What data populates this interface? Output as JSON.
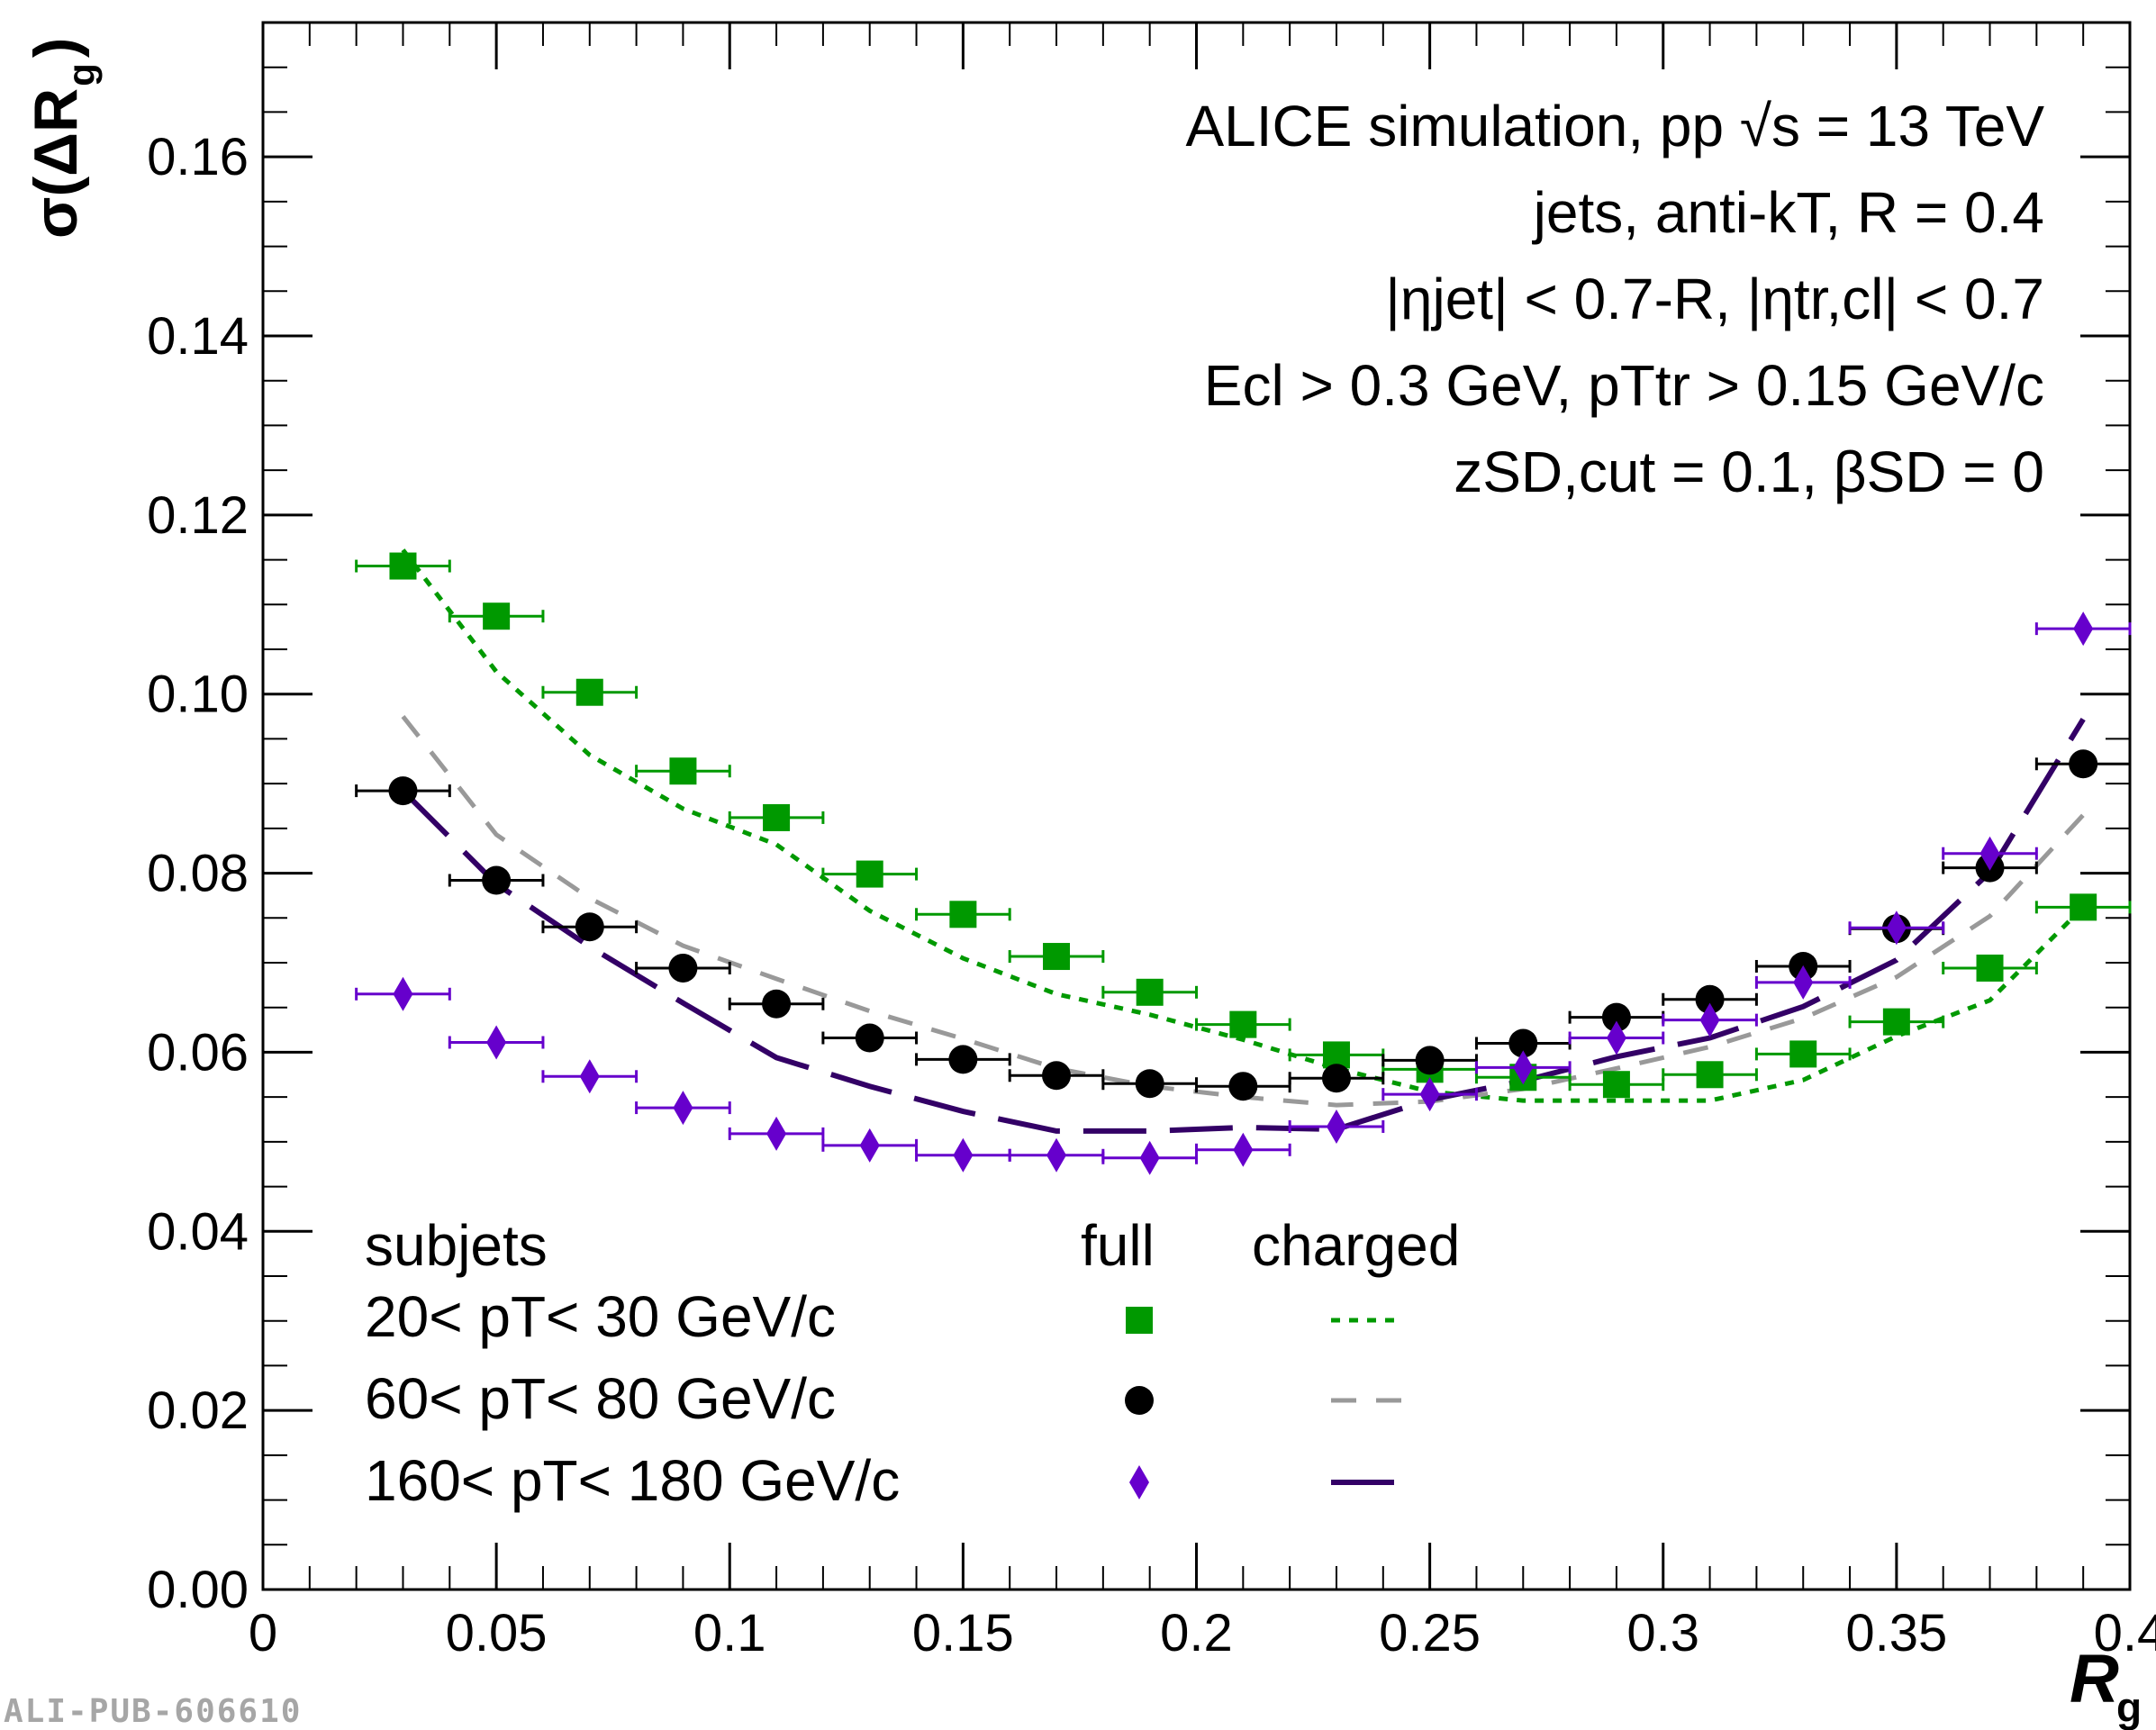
{
  "chart_data": {
    "type": "scatter",
    "xlabel": "R",
    "xlabel_sub": "g",
    "ylabel": "σ(ΔR",
    "ylabel_sub": "g",
    "ylabel_close": ")",
    "xlim": [
      0,
      0.4
    ],
    "ylim": [
      0,
      0.175
    ],
    "x_ticks": [
      "0",
      "0.05",
      "0.1",
      "0.15",
      "0.2",
      "0.25",
      "0.3",
      "0.35",
      "0.4"
    ],
    "y_ticks": [
      "0.00",
      "0.02",
      "0.04",
      "0.06",
      "0.08",
      "0.10",
      "0.12",
      "0.14",
      "0.16"
    ],
    "annotation": {
      "line1": "ALICE simulation, pp  √s = 13 TeV",
      "line2": "jets, anti-kT, R = 0.4",
      "line3": "|ηjet| < 0.7-R, |ηtr,cl| < 0.7",
      "line4": "Ecl > 0.3 GeV, pTtr > 0.15 GeV/c",
      "line5": "zSD,cut = 0.1, βSD = 0"
    },
    "legend": {
      "header": "subjets",
      "col_full": "full",
      "col_charged": "charged",
      "entries": [
        "20< pT< 30 GeV/c",
        "60< pT< 80 GeV/c",
        "160< pT< 180 GeV/c"
      ]
    },
    "colors": {
      "green": "#009900",
      "black": "#000000",
      "purple": "#6600cc",
      "gray": "#999999",
      "dark_purple": "#330066"
    },
    "x": [
      0.03,
      0.05,
      0.07,
      0.09,
      0.11,
      0.13,
      0.15,
      0.17,
      0.19,
      0.21,
      0.23,
      0.25,
      0.27,
      0.29,
      0.31,
      0.33,
      0.35,
      0.37,
      0.39
    ],
    "x_err": 0.01,
    "series": [
      {
        "name": "20< pT< 30 GeV/c",
        "style": "full",
        "marker": "square",
        "color": "#009900",
        "values": [
          0.1143,
          0.1087,
          0.1002,
          0.0914,
          0.0862,
          0.0799,
          0.0754,
          0.0707,
          0.0667,
          0.0631,
          0.0597,
          0.0581,
          0.0572,
          0.0564,
          0.0575,
          0.0598,
          0.0634,
          0.0694,
          0.0762
        ]
      },
      {
        "name": "60< pT< 80 GeV/c",
        "style": "full",
        "marker": "circle",
        "color": "#000000",
        "values": [
          0.0892,
          0.0792,
          0.074,
          0.0694,
          0.0654,
          0.0616,
          0.0592,
          0.0574,
          0.0565,
          0.0562,
          0.0571,
          0.0591,
          0.061,
          0.0639,
          0.0659,
          0.0696,
          0.0738,
          0.0806,
          0.0922
        ]
      },
      {
        "name": "160< pT< 180 GeV/c",
        "style": "full",
        "marker": "diamond",
        "color": "#6600cc",
        "values": [
          0.0665,
          0.0611,
          0.0573,
          0.0538,
          0.0509,
          0.0496,
          0.0485,
          0.0485,
          0.0482,
          0.0491,
          0.0517,
          0.0553,
          0.0583,
          0.0616,
          0.0636,
          0.0678,
          0.0739,
          0.0822,
          0.1073
        ]
      },
      {
        "name": "20< pT< 30 GeV/c",
        "style": "charged",
        "dash": "dotted",
        "color": "#009900",
        "values": [
          0.1161,
          0.1025,
          0.0932,
          0.0872,
          0.0832,
          0.0758,
          0.0705,
          0.0665,
          0.0642,
          0.0614,
          0.0582,
          0.0556,
          0.0546,
          0.0546,
          0.0546,
          0.0569,
          0.0618,
          0.0658,
          0.0762
        ]
      },
      {
        "name": "60< pT< 80 GeV/c",
        "style": "charged",
        "dash": "dashed",
        "color": "#999999",
        "values": [
          0.0975,
          0.0843,
          0.0772,
          0.0719,
          0.0682,
          0.0646,
          0.0615,
          0.0582,
          0.0562,
          0.055,
          0.0541,
          0.0545,
          0.0559,
          0.0582,
          0.0606,
          0.0638,
          0.0684,
          0.0752,
          0.0865
        ]
      },
      {
        "name": "160< pT< 180 GeV/c",
        "style": "charged",
        "dash": "longdash",
        "color": "#330066",
        "values": [
          0.0892,
          0.0788,
          0.0718,
          0.0655,
          0.0594,
          0.0562,
          0.0534,
          0.0512,
          0.0512,
          0.0516,
          0.0514,
          0.0547,
          0.0568,
          0.0595,
          0.0616,
          0.0651,
          0.0703,
          0.0801,
          0.0972
        ]
      }
    ]
  },
  "watermark": "ALI-PUB-606610"
}
